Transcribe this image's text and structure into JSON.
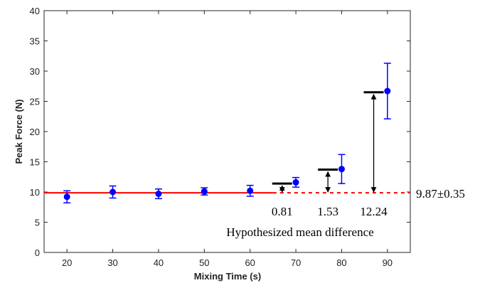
{
  "chart_data": {
    "type": "scatter",
    "title": "",
    "xlabel": "Mixing Time (s)",
    "ylabel": "Peak Force (N)",
    "xlim": [
      15,
      95
    ],
    "ylim": [
      0,
      40
    ],
    "xticks": [
      20,
      30,
      40,
      50,
      60,
      70,
      80,
      90
    ],
    "yticks": [
      0,
      5,
      10,
      15,
      20,
      25,
      30,
      35,
      40
    ],
    "grid": false,
    "series": [
      {
        "color": "#0000ff",
        "x": [
          20,
          30,
          40,
          50,
          60,
          70,
          80,
          90
        ],
        "y": [
          9.2,
          10.0,
          9.7,
          10.1,
          10.2,
          11.6,
          13.8,
          26.7
        ],
        "error": [
          1.0,
          1.0,
          0.8,
          0.6,
          0.9,
          0.8,
          2.4,
          4.6
        ]
      }
    ],
    "reference_line": {
      "y": 9.87,
      "color": "#ff0000",
      "solid_x_range": [
        15,
        65
      ],
      "dashed_x_range": [
        65,
        95
      ],
      "label": "9.87±0.35"
    },
    "hypothesized_bars": [
      {
        "x": 67,
        "y": 11.4,
        "difference_label": "0.81"
      },
      {
        "x": 77,
        "y": 13.7,
        "difference_label": "1.53"
      },
      {
        "x": 87,
        "y": 26.5,
        "difference_label": "12.24"
      }
    ],
    "annotation": "Hypothesized mean difference",
    "colors": {
      "data": "#0000ff",
      "reference": "#ff0000",
      "bars": "#000000"
    }
  }
}
